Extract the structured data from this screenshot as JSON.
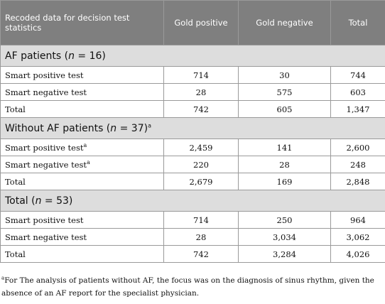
{
  "table": {
    "headers": {
      "col1": "Recoded data for decision test statistics",
      "col2": "Gold positive",
      "col3": "Gold negative",
      "col4": "Total"
    },
    "sections": [
      {
        "title": "AF patients (",
        "title_n": "n",
        "title_rest": " = 16)",
        "title_sup": "",
        "rows": [
          {
            "label": "Smart positive test",
            "sup": "",
            "c1": "714",
            "c2": "30",
            "c3": "744"
          },
          {
            "label": "Smart negative test",
            "sup": "",
            "c1": "28",
            "c2": "575",
            "c3": "603"
          },
          {
            "label": "Total",
            "sup": "",
            "c1": "742",
            "c2": "605",
            "c3": "1,347"
          }
        ]
      },
      {
        "title": "Without AF patients (",
        "title_n": "n",
        "title_rest": " = 37)",
        "title_sup": "a",
        "rows": [
          {
            "label": "Smart positive test",
            "sup": "a",
            "c1": "2,459",
            "c2": "141",
            "c3": "2,600"
          },
          {
            "label": "Smart negative test",
            "sup": "a",
            "c1": "220",
            "c2": "28",
            "c3": "248"
          },
          {
            "label": "Total",
            "sup": "",
            "c1": "2,679",
            "c2": "169",
            "c3": "2,848"
          }
        ]
      },
      {
        "title": "Total (",
        "title_n": "n",
        "title_rest": " = 53)",
        "title_sup": "",
        "rows": [
          {
            "label": "Smart positive test",
            "sup": "",
            "c1": "714",
            "c2": "250",
            "c3": "964"
          },
          {
            "label": "Smart negative test",
            "sup": "",
            "c1": "28",
            "c2": "3,034",
            "c3": "3,062"
          },
          {
            "label": "Total",
            "sup": "",
            "c1": "742",
            "c2": "3,284",
            "c3": "4,026"
          }
        ]
      }
    ]
  },
  "footnote": {
    "marker": "a",
    "text": "For The analysis of patients without AF, the focus was on the diagnosis of sinus rhythm, given the absence of an AF report for the specialist physician."
  }
}
